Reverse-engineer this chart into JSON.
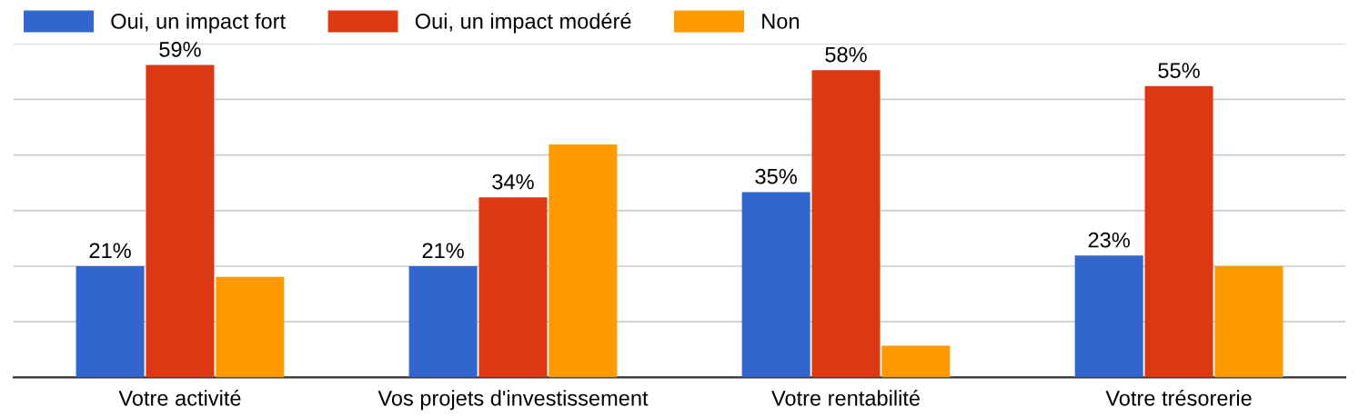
{
  "chart_data": {
    "type": "bar",
    "categories": [
      "Votre activité",
      "Vos projets d'investissement",
      "Votre rentabilité",
      "Votre trésorerie"
    ],
    "series": [
      {
        "name": "Oui, un impact fort",
        "color": "#3366cc",
        "values": [
          21,
          21,
          35,
          23
        ],
        "value_labels": [
          "21%",
          "21%",
          "35%",
          "23%"
        ]
      },
      {
        "name": "Oui, un impact modéré",
        "color": "#dc3912",
        "values": [
          59,
          34,
          58,
          55
        ],
        "value_labels": [
          "59%",
          "34%",
          "58%",
          "55%"
        ]
      },
      {
        "name": "Non",
        "color": "#ff9900",
        "values": [
          19,
          44,
          6,
          21
        ],
        "value_labels": [
          null,
          null,
          null,
          null
        ]
      }
    ],
    "ylim": [
      0,
      63
    ],
    "yticks": [
      {
        "value": 0,
        "label": null
      },
      {
        "value": 10.5,
        "label": null
      },
      {
        "value": 21,
        "label": null
      },
      {
        "value": 31.5,
        "label": null
      },
      {
        "value": 42,
        "label": null
      },
      {
        "value": 52.5,
        "label": null
      },
      {
        "value": 63,
        "label": null
      }
    ],
    "grid": "y",
    "legend": "top left",
    "tick_labels": "x"
  }
}
